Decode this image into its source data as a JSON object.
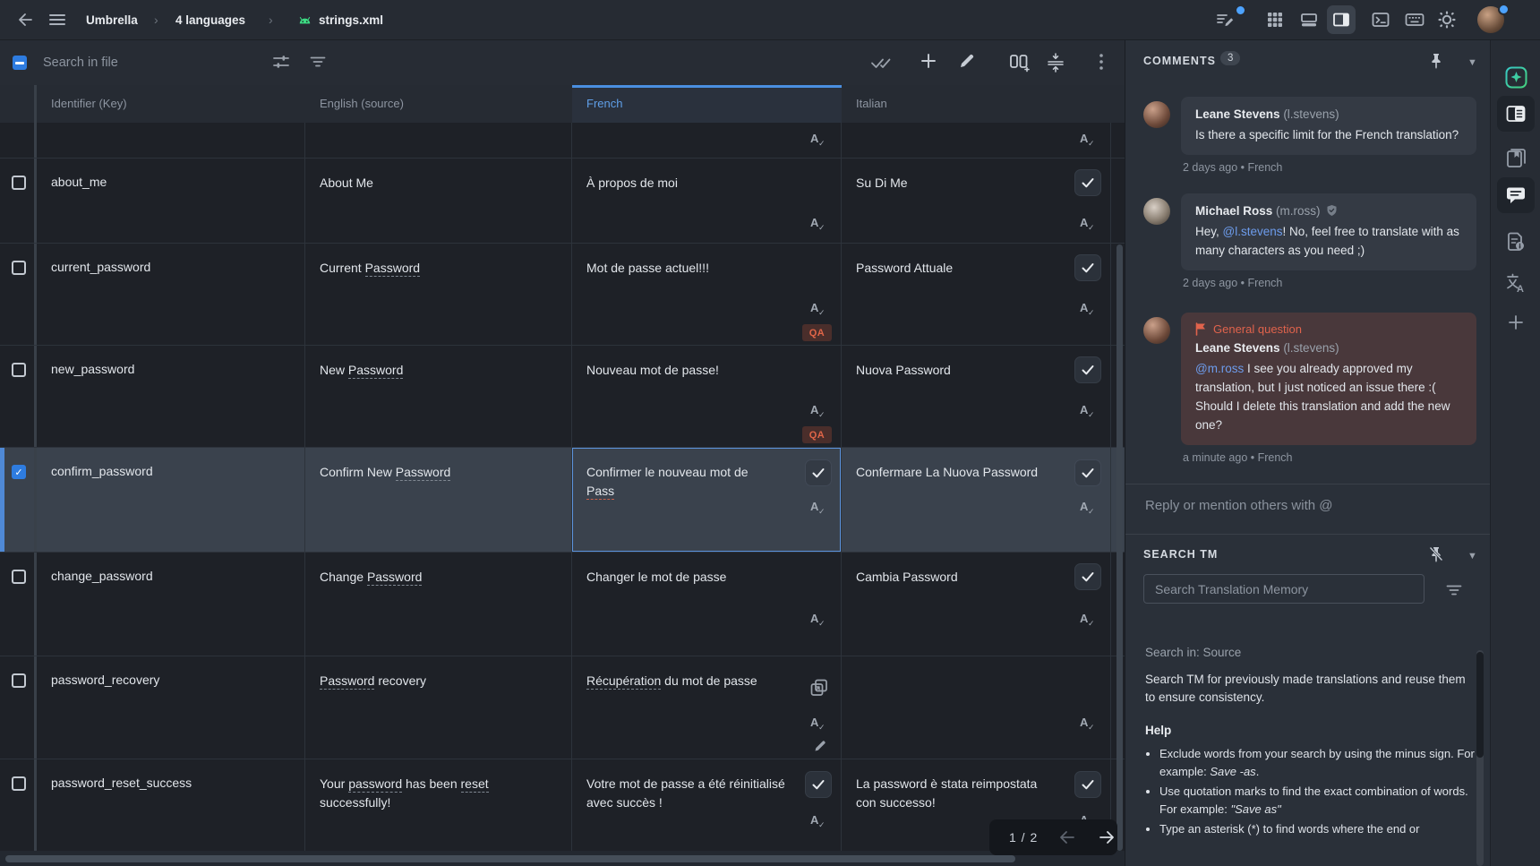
{
  "topbar": {
    "breadcrumb": {
      "project": "Umbrella",
      "branch": "4 languages",
      "file": "strings.xml"
    }
  },
  "toolbar": {
    "search_placeholder": "Search in file"
  },
  "table": {
    "headers": {
      "key": "Identifier (Key)",
      "source": "English (source)",
      "french": "French",
      "italian": "Italian"
    },
    "qa_label": "QA",
    "rows": [
      {
        "key": "",
        "en": [],
        "fr": [],
        "it": []
      },
      {
        "key": "about_me",
        "en": [
          {
            "t": "About Me"
          }
        ],
        "fr": [
          {
            "t": "À propos de moi"
          }
        ],
        "it": [
          {
            "t": "Su Di Me"
          }
        ]
      },
      {
        "key": "current_password",
        "en": [
          {
            "t": "Current "
          },
          {
            "t": "Password",
            "m": "term"
          }
        ],
        "fr": [
          {
            "t": "Mot de passe actuel!!!"
          }
        ],
        "it": [
          {
            "t": "Password Attuale"
          }
        ]
      },
      {
        "key": "new_password",
        "en": [
          {
            "t": "New "
          },
          {
            "t": "Password",
            "m": "term"
          }
        ],
        "fr": [
          {
            "t": "Nouveau mot de passe!"
          }
        ],
        "it": [
          {
            "t": "Nuova Password"
          }
        ]
      },
      {
        "key": "confirm_password",
        "en": [
          {
            "t": "Confirm New "
          },
          {
            "t": "Password",
            "m": "term"
          }
        ],
        "fr": [
          {
            "t": "Confirmer le nouveau mot de "
          },
          {
            "t": "Pass",
            "m": "issue"
          }
        ],
        "it": [
          {
            "t": "Confermare La Nuova Password"
          }
        ]
      },
      {
        "key": "change_password",
        "en": [
          {
            "t": "Change "
          },
          {
            "t": "Password",
            "m": "term"
          }
        ],
        "fr": [
          {
            "t": "Changer le mot de passe"
          }
        ],
        "it": [
          {
            "t": "Cambia Password"
          }
        ]
      },
      {
        "key": "password_recovery",
        "en": [
          {
            "t": "Password",
            "m": "term"
          },
          {
            "t": " recovery"
          }
        ],
        "fr": [
          {
            "t": "Récupération",
            "m": "term"
          },
          {
            "t": " du mot de passe"
          }
        ],
        "it": []
      },
      {
        "key": "password_reset_success",
        "en": [
          {
            "t": "Your "
          },
          {
            "t": "password",
            "m": "term"
          },
          {
            "t": " has been "
          },
          {
            "t": "reset",
            "m": "term"
          },
          {
            "t": " successfully!"
          }
        ],
        "fr": [
          {
            "t": "Votre mot de passe a été réinitialisé avec succès !"
          }
        ],
        "it": [
          {
            "t": "La password è stata reimpostata con successo!"
          }
        ]
      }
    ]
  },
  "pagination": {
    "label": "1 / 2"
  },
  "comments": {
    "title": "COMMENTS",
    "count": "3",
    "items": [
      {
        "author": "Leane Stevens",
        "username": "(l.stevens)",
        "body": [
          {
            "t": "Is there a specific limit for the French translation?"
          }
        ],
        "meta": "2 days ago • French"
      },
      {
        "author": "Michael Ross",
        "username": "(m.ross)",
        "body": [
          {
            "t": "Hey, "
          },
          {
            "t": "@l.stevens",
            "m": "mention"
          },
          {
            "t": "! No, feel free to translate with as many characters as you need ;)"
          }
        ],
        "meta": "2 days ago • French"
      },
      {
        "author": "Leane Stevens",
        "username": "(l.stevens)",
        "flag": "General question",
        "body": [
          {
            "t": "@m.ross",
            "m": "mention"
          },
          {
            "t": " I see you already approved my translation, but I just noticed an issue there :( Should I delete this translation and add the new one?"
          }
        ],
        "meta": "a minute ago • French"
      }
    ],
    "reply_placeholder": "Reply or mention others with @"
  },
  "search_tm": {
    "title": "SEARCH TM",
    "input_placeholder": "Search Translation Memory",
    "scope": "Search in: Source",
    "description": "Search TM for previously made translations and reuse them to ensure consistency.",
    "help_title": "Help",
    "bullets": [
      [
        {
          "t": "Exclude words from your search by using the minus sign. For example: "
        },
        {
          "t": "Save -as",
          "m": "i"
        },
        {
          "t": "."
        }
      ],
      [
        {
          "t": "Use quotation marks to find the exact combination of words. For example: "
        },
        {
          "t": "\"Save as\"",
          "m": "i"
        }
      ],
      [
        {
          "t": "Type an asterisk (*) to find words where the end or"
        }
      ]
    ]
  }
}
